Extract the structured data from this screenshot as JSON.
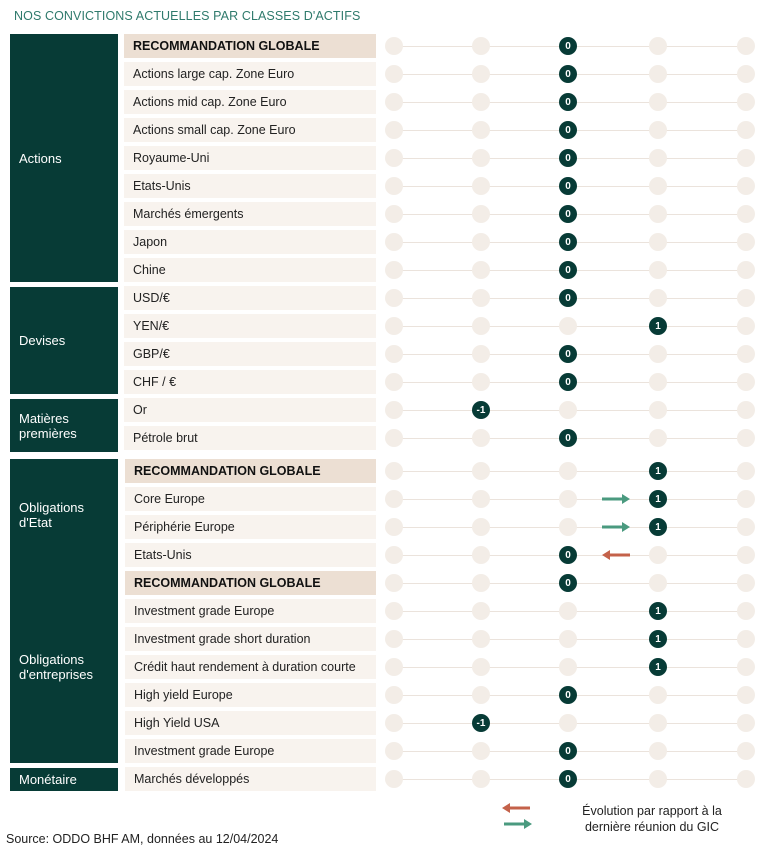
{
  "title": "NOS CONVICTIONS ACTUELLES PAR CLASSES D'ACTIFS",
  "colors": {
    "dark_green": "#073b36",
    "arrow_up": "#4a9a7f",
    "arrow_down": "#c4624a"
  },
  "scale": [
    -2,
    -1,
    0,
    1,
    2
  ],
  "categories": [
    {
      "name": "Actions"
    },
    {
      "name": "Devises"
    },
    {
      "name": "Matières\npremières"
    },
    {
      "name": "Obligations\nd'Etat"
    },
    {
      "name": "Obligations\nd'entreprises"
    },
    {
      "name": "Monétaire"
    }
  ],
  "rows": [
    {
      "label": "RECOMMANDATION GLOBALE",
      "value": 0
    },
    {
      "label": "Actions large cap. Zone Euro",
      "value": 0
    },
    {
      "label": "Actions mid cap. Zone Euro",
      "value": 0
    },
    {
      "label": "Actions small cap. Zone Euro",
      "value": 0
    },
    {
      "label": "Royaume-Uni",
      "value": 0
    },
    {
      "label": "Etats-Unis",
      "value": 0
    },
    {
      "label": "Marchés émergents",
      "value": 0
    },
    {
      "label": "Japon",
      "value": 0
    },
    {
      "label": "Chine",
      "value": 0
    },
    {
      "label": "USD/€",
      "value": 0
    },
    {
      "label": "YEN/€",
      "value": 1
    },
    {
      "label": "GBP/€",
      "value": 0
    },
    {
      "label": "CHF / €",
      "value": 0
    },
    {
      "label": "Or",
      "value": -1
    },
    {
      "label": "Pétrole brut",
      "value": 0
    },
    {
      "label": "RECOMMANDATION GLOBALE",
      "value": 1
    },
    {
      "label": "Core Europe",
      "value": 1,
      "change": "up"
    },
    {
      "label": "Périphérie Europe",
      "value": 1,
      "change": "up"
    },
    {
      "label": "Etats-Unis",
      "value": 0,
      "change": "down"
    },
    {
      "label": "RECOMMANDATION GLOBALE",
      "value": 0
    },
    {
      "label": "Investment grade Europe",
      "value": 1
    },
    {
      "label": "Investment grade short duration",
      "value": 1
    },
    {
      "label": "Crédit haut rendement à duration courte",
      "value": 1
    },
    {
      "label": "High yield Europe",
      "value": 0
    },
    {
      "label": "High Yield USA",
      "value": -1
    },
    {
      "label": "Investment grade Europe",
      "value": 0
    },
    {
      "label": "Marchés développés",
      "value": 0
    }
  ],
  "legend": {
    "text_line1": "Évolution par rapport à la",
    "text_line2": "dernière réunion du GIC"
  },
  "source": "Source: ODDO BHF AM, données au 12/04/2024"
}
